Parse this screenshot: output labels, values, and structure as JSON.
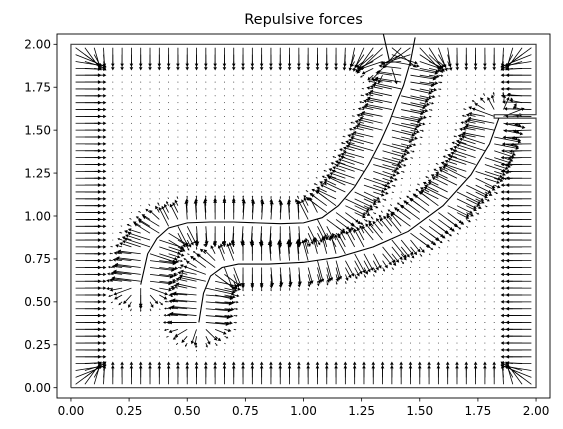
{
  "chart_data": {
    "type": "quiver",
    "title": "Repulsive forces",
    "xlabel": "",
    "ylabel": "",
    "xlim": [
      -0.06,
      2.06
    ],
    "ylim": [
      -0.06,
      2.06
    ],
    "xticks": [
      0.0,
      0.25,
      0.5,
      0.75,
      1.0,
      1.25,
      1.5,
      1.75,
      2.0
    ],
    "xtick_labels": [
      "0.00",
      "0.25",
      "0.50",
      "0.75",
      "1.00",
      "1.25",
      "1.50",
      "1.75",
      "2.00"
    ],
    "yticks": [
      0.0,
      0.25,
      0.5,
      0.75,
      1.0,
      1.25,
      1.5,
      1.75,
      2.0
    ],
    "ytick_labels": [
      "0.00",
      "0.25",
      "0.50",
      "0.75",
      "1.00",
      "1.25",
      "1.50",
      "1.75",
      "2.00"
    ],
    "grid": false,
    "arrow_color": "#000000",
    "boundary_color": "#404040",
    "outer_boundary": {
      "x": [
        0.0,
        2.0,
        2.0,
        1.82,
        1.82,
        2.0,
        2.0,
        0.0,
        0.0
      ],
      "y": [
        0.0,
        0.0,
        1.57,
        1.57,
        1.59,
        1.59,
        2.0,
        2.0,
        0.0
      ]
    },
    "curves": [
      {
        "x": [
          0.3,
          0.33,
          0.37,
          0.42,
          0.5,
          0.6,
          0.7,
          0.8,
          0.9,
          1.0,
          1.08,
          1.15,
          1.22,
          1.28,
          1.33,
          1.37,
          1.4,
          1.43,
          1.46,
          1.48
        ],
        "y": [
          0.6,
          0.78,
          0.87,
          0.93,
          0.96,
          0.965,
          0.965,
          0.96,
          0.955,
          0.96,
          0.99,
          1.06,
          1.17,
          1.3,
          1.43,
          1.55,
          1.66,
          1.76,
          1.9,
          2.04
        ]
      },
      {
        "x": [
          0.55,
          0.57,
          0.6,
          0.65,
          0.72,
          0.85,
          1.0,
          1.15,
          1.3,
          1.45,
          1.6,
          1.72,
          1.8,
          1.84
        ],
        "y": [
          0.38,
          0.55,
          0.65,
          0.7,
          0.72,
          0.72,
          0.73,
          0.76,
          0.82,
          0.91,
          1.06,
          1.24,
          1.42,
          1.57
        ]
      },
      {
        "x": [
          1.37,
          1.35,
          1.34
        ],
        "y": [
          1.9,
          2.02,
          2.08
        ]
      }
    ],
    "field_sampling": {
      "grid_step": 0.04,
      "grid_range": [
        0.02,
        1.98
      ],
      "wall_range": 0.17,
      "curve_range": 0.2,
      "base_length": 0.003,
      "wall_strength": 0.17,
      "curve_strength": 0.13
    }
  }
}
